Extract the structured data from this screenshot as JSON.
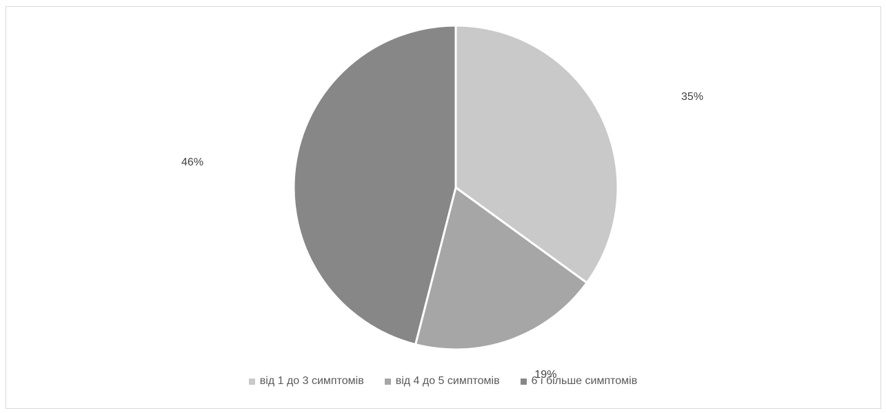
{
  "chart_data": {
    "type": "pie",
    "title": "",
    "categories": [
      "від 1 до 3 симптомів",
      "від 4 до 5 симптомів",
      "6 і більше симптомів"
    ],
    "values": [
      35,
      19,
      46
    ],
    "data_labels": [
      "35%",
      "19%",
      "46%"
    ],
    "colors": [
      "#c9c9c9",
      "#a6a6a6",
      "#878787"
    ],
    "legend_position": "bottom"
  }
}
